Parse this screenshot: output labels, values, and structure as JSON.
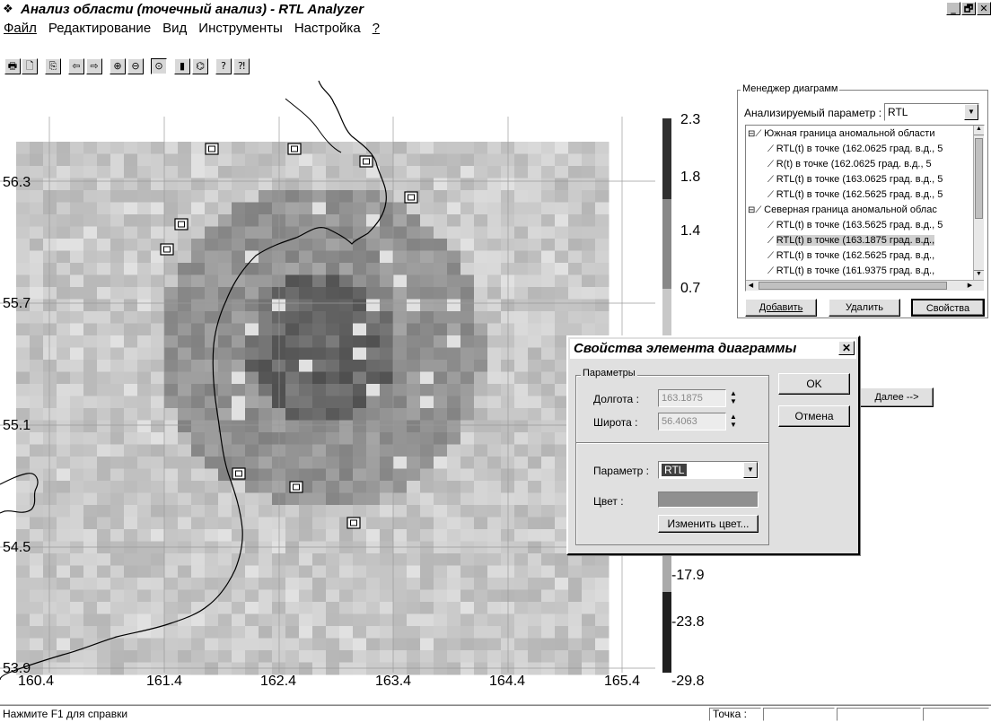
{
  "window": {
    "title": "Анализ области (точечный анализ) - RTL Analyzer",
    "controls": [
      "_",
      "🗗",
      "✕"
    ]
  },
  "menu": [
    {
      "label": "Файл",
      "accel": "Ф"
    },
    {
      "label": "Редактирование",
      "accel": "Р"
    },
    {
      "label": "Вид",
      "accel": "В"
    },
    {
      "label": "Инструменты",
      "accel": "И"
    },
    {
      "label": "Настройка",
      "accel": ""
    },
    {
      "label": "?",
      "accel": "?"
    }
  ],
  "toolbar": {
    "buttons": [
      "print-icon",
      "print-preview-icon",
      "copy-icon",
      "arrow-left-icon",
      "arrow-right-icon",
      "zoom-in-icon",
      "zoom-out-icon",
      "crosshair-icon",
      "bar-icon",
      "chart-icon",
      "help-icon",
      "context-help-icon"
    ]
  },
  "map": {
    "x_ticks": [
      "160.4",
      "161.4",
      "162.4",
      "163.4",
      "164.4",
      "165.4"
    ],
    "y_ticks": [
      "56.3",
      "55.7",
      "55.1",
      "54.5",
      "53.9"
    ],
    "colorbar_ticks": [
      "2.3",
      "1.8",
      "1.4",
      "0.7",
      "-17.9",
      "-23.8",
      "-29.8"
    ],
    "colors": {
      "low": "#2a2a2a",
      "mid": "#7a7a7a",
      "high": "#dcdcdc",
      "grid": "#c8c8c8"
    }
  },
  "diagram_manager": {
    "title": "Менеджер диаграмм",
    "param_label": "Анализируемый параметр :",
    "param_value": "RTL",
    "tree": [
      {
        "level": 0,
        "text": "Южная граница аномальной области",
        "selected": false
      },
      {
        "level": 1,
        "text": "RTL(t) в точке (162.0625 град. в.д., 5",
        "selected": false
      },
      {
        "level": 1,
        "text": "R(t) в точке (162.0625 град. в.д., 5",
        "selected": false
      },
      {
        "level": 1,
        "text": "RTL(t) в точке (163.0625 град. в.д., 5",
        "selected": false
      },
      {
        "level": 1,
        "text": "RTL(t) в точке (162.5625 град. в.д., 5",
        "selected": false
      },
      {
        "level": 0,
        "text": "Северная граница аномальной облас",
        "selected": false
      },
      {
        "level": 1,
        "text": "RTL(t) в точке (163.5625 град. в.д., 5",
        "selected": false
      },
      {
        "level": 1,
        "text": "RTL(t) в точке (163.1875 град. в.д.,",
        "selected": true
      },
      {
        "level": 1,
        "text": "RTL(t) в точке (162.5625 град. в.д.,",
        "selected": false
      },
      {
        "level": 1,
        "text": "RTL(t) в точке (161.9375 град. в.д.,",
        "selected": false
      }
    ],
    "add_label": "Добавить",
    "delete_label": "Удалить",
    "props_label": "Свойства"
  },
  "next_label": "Далее -->",
  "dialog": {
    "title": "Свойства элемента диаграммы",
    "group_title": "Параметры",
    "lon_label": "Долгота :",
    "lon_value": "163.1875",
    "lat_label": "Широта :",
    "lat_value": "56.4063",
    "param_label": "Параметр :",
    "param_value": "RTL",
    "color_label": "Цвет :",
    "change_color_label": "Изменить цвет...",
    "ok_label": "OK",
    "cancel_label": "Отмена"
  },
  "statusbar": {
    "help_text": "Нажмите F1 для справки",
    "point_label": "Точка :"
  }
}
